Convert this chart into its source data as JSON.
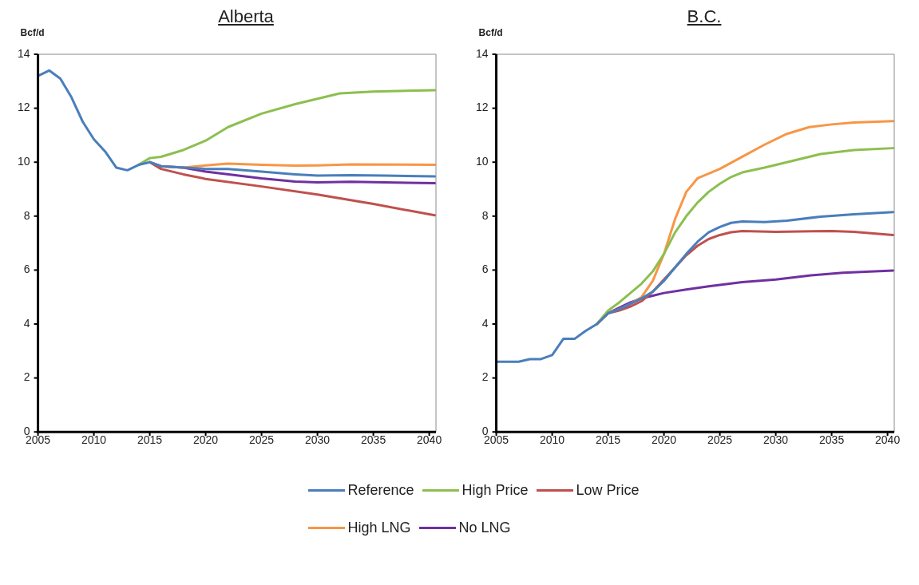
{
  "chart_data": [
    {
      "type": "line",
      "title": "Alberta",
      "ylabel": "Bcf/d",
      "xlim": [
        2005,
        2040.6
      ],
      "xticks": [
        2005,
        2010,
        2015,
        2020,
        2025,
        2030,
        2035,
        2040
      ],
      "ylim": [
        0,
        14
      ],
      "yticks": [
        0,
        2,
        4,
        6,
        8,
        10,
        12,
        14
      ],
      "grid": false,
      "legend": false,
      "marker": "none",
      "series": [
        {
          "color": "#4a7ebb",
          "x": [
            2005,
            2006,
            2007,
            2008,
            2009,
            2010,
            2011,
            2012,
            2013,
            2014,
            2015,
            2016,
            2018,
            2020,
            2022,
            2025,
            2028,
            2030,
            2033,
            2036,
            2040.5
          ],
          "values": [
            13.2,
            13.4,
            13.1,
            12.4,
            11.5,
            10.85,
            10.4,
            9.8,
            9.7,
            9.9,
            10.0,
            9.85,
            9.8,
            9.75,
            9.75,
            9.65,
            9.55,
            9.5,
            9.52,
            9.5,
            9.47
          ]
        },
        {
          "color": "#8cbf4f",
          "x": [
            2014,
            2015,
            2016,
            2018,
            2020,
            2022,
            2025,
            2028,
            2030,
            2032,
            2035,
            2040.5
          ],
          "values": [
            9.9,
            10.15,
            10.2,
            10.45,
            10.8,
            11.3,
            11.8,
            12.15,
            12.35,
            12.55,
            12.62,
            12.67
          ]
        },
        {
          "color": "#c0504d",
          "x": [
            2015,
            2016,
            2018,
            2020,
            2025,
            2030,
            2035,
            2040.5
          ],
          "values": [
            10.0,
            9.75,
            9.55,
            9.38,
            9.1,
            8.8,
            8.45,
            8.03
          ]
        },
        {
          "color": "#f79646",
          "x": [
            2015,
            2016,
            2018,
            2020,
            2022,
            2025,
            2028,
            2030,
            2033,
            2040.5
          ],
          "values": [
            10.0,
            9.85,
            9.8,
            9.88,
            9.95,
            9.9,
            9.87,
            9.88,
            9.92,
            9.9
          ]
        },
        {
          "color": "#7030a0",
          "x": [
            2015,
            2016,
            2018,
            2020,
            2025,
            2028,
            2030,
            2033,
            2040.5
          ],
          "values": [
            10.0,
            9.85,
            9.8,
            9.65,
            9.4,
            9.28,
            9.25,
            9.27,
            9.22
          ]
        }
      ]
    },
    {
      "type": "line",
      "title": "B.C.",
      "ylabel": "Bcf/d",
      "xlim": [
        2005,
        2040.6
      ],
      "xticks": [
        2005,
        2010,
        2015,
        2020,
        2025,
        2030,
        2035,
        2040
      ],
      "ylim": [
        0,
        14
      ],
      "yticks": [
        0,
        2,
        4,
        6,
        8,
        10,
        12,
        14
      ],
      "grid": false,
      "legend": "bottom",
      "marker": "none",
      "series": [
        {
          "name": "Reference",
          "color": "#4a7ebb",
          "x": [
            2005,
            2007,
            2008,
            2009,
            2010,
            2011,
            2012,
            2013,
            2014,
            2015,
            2016,
            2017,
            2018,
            2019,
            2020,
            2021,
            2022,
            2023,
            2024,
            2025,
            2026,
            2027,
            2029,
            2031,
            2034,
            2037,
            2040.5
          ],
          "values": [
            2.6,
            2.6,
            2.7,
            2.7,
            2.85,
            3.45,
            3.45,
            3.75,
            4.0,
            4.4,
            4.55,
            4.75,
            4.95,
            5.2,
            5.6,
            6.1,
            6.6,
            7.05,
            7.4,
            7.6,
            7.75,
            7.8,
            7.78,
            7.83,
            7.98,
            8.07,
            8.15
          ]
        },
        {
          "name": "High Price",
          "color": "#8cbf4f",
          "x": [
            2014,
            2015,
            2016,
            2017,
            2018,
            2019,
            2020,
            2021,
            2022,
            2023,
            2024,
            2025,
            2026,
            2027,
            2029,
            2031,
            2034,
            2037,
            2040.5
          ],
          "values": [
            4.0,
            4.5,
            4.8,
            5.15,
            5.5,
            5.95,
            6.6,
            7.4,
            8.0,
            8.5,
            8.9,
            9.2,
            9.45,
            9.62,
            9.8,
            10.0,
            10.3,
            10.45,
            10.52
          ]
        },
        {
          "name": "Low Price",
          "color": "#c0504d",
          "x": [
            2014,
            2015,
            2016,
            2017,
            2018,
            2019,
            2020,
            2021,
            2022,
            2023,
            2024,
            2025,
            2026,
            2027,
            2030,
            2035,
            2037,
            2040.5
          ],
          "values": [
            4.0,
            4.4,
            4.5,
            4.65,
            4.85,
            5.2,
            5.65,
            6.1,
            6.55,
            6.9,
            7.15,
            7.3,
            7.4,
            7.45,
            7.42,
            7.45,
            7.42,
            7.3
          ]
        },
        {
          "name": "High LNG",
          "color": "#f79646",
          "x": [
            2014,
            2015,
            2016,
            2017,
            2018,
            2019,
            2020,
            2021,
            2022,
            2023,
            2025,
            2027,
            2029,
            2031,
            2033,
            2035,
            2037,
            2040.5
          ],
          "values": [
            4.0,
            4.4,
            4.55,
            4.75,
            5.0,
            5.6,
            6.6,
            7.9,
            8.9,
            9.4,
            9.75,
            10.2,
            10.65,
            11.05,
            11.3,
            11.4,
            11.47,
            11.52
          ]
        },
        {
          "name": "No LNG",
          "color": "#7030a0",
          "x": [
            2014,
            2015,
            2016,
            2017,
            2018,
            2019,
            2020,
            2022,
            2024,
            2027,
            2030,
            2033,
            2036,
            2040.5
          ],
          "values": [
            4.0,
            4.4,
            4.6,
            4.8,
            4.95,
            5.05,
            5.15,
            5.28,
            5.4,
            5.55,
            5.65,
            5.8,
            5.9,
            5.98
          ]
        }
      ]
    }
  ]
}
